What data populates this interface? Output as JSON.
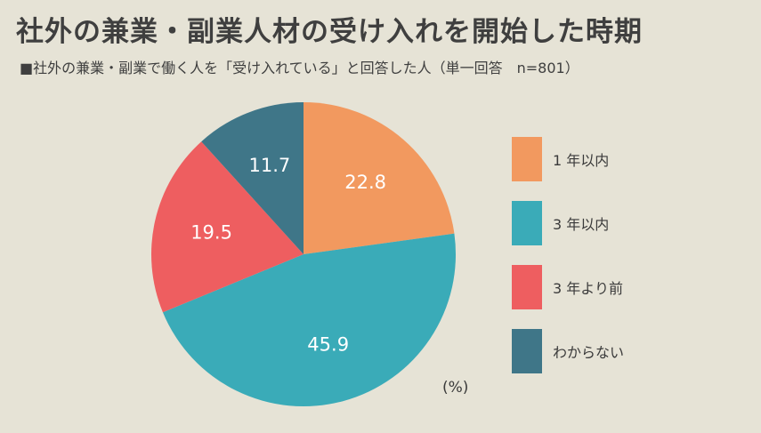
{
  "title": "社外の兼業・副業人材の受け入れを開始した時期",
  "subtitle": "■社外の兼業・副業で働く人を「受け入れている」と回答した人（単一回答　n=801）",
  "unit_label": "(%)",
  "chart_data": {
    "type": "pie",
    "categories": [
      "1 年以内",
      "3 年以内",
      "3 年より前",
      "わからない"
    ],
    "values": [
      22.8,
      45.9,
      19.5,
      11.7
    ],
    "value_labels": [
      "22.8",
      "45.9",
      "19.5",
      "11.7"
    ],
    "colors": [
      "#f2995f",
      "#3aabb8",
      "#ee5e60",
      "#3f7688"
    ],
    "start_angle_deg": 0,
    "direction": "clockwise",
    "legend_position": "right"
  }
}
